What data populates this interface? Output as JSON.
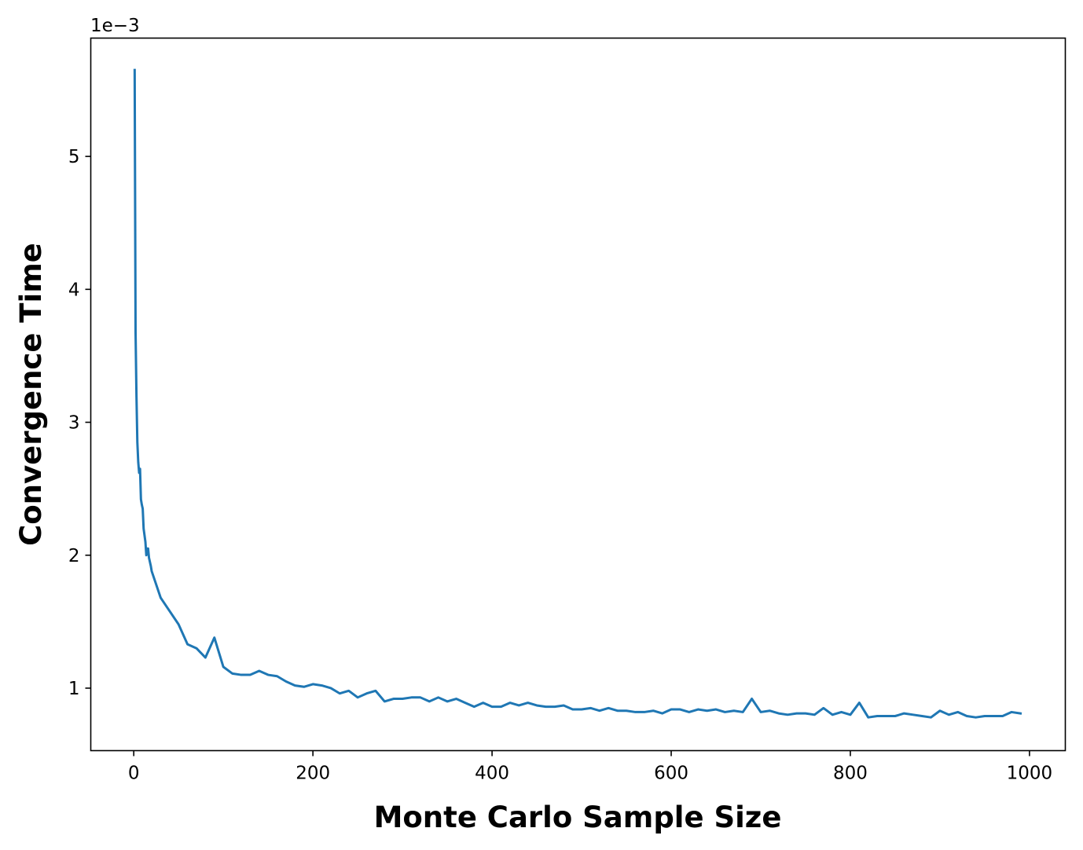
{
  "chart_data": {
    "type": "line",
    "title": "",
    "xlabel": "Monte Carlo Sample Size",
    "ylabel": "Convergence Time",
    "y_scale_offset": "1e−3",
    "xlim": [
      -48,
      1040
    ],
    "ylim": [
      0.53,
      5.89
    ],
    "x_ticks": [
      0,
      200,
      400,
      600,
      800,
      1000
    ],
    "y_ticks": [
      1,
      2,
      3,
      4,
      5
    ],
    "grid": false,
    "legend": "none",
    "color": "#1f77b4",
    "series": [
      {
        "x": [
          1,
          2,
          3,
          4,
          5,
          6,
          7,
          8,
          9,
          10,
          11,
          12,
          13,
          14,
          15,
          16,
          17,
          18,
          19,
          20,
          30,
          40,
          50,
          60,
          70,
          80,
          90,
          100,
          110,
          120,
          130,
          140,
          150,
          160,
          170,
          180,
          190,
          200,
          210,
          220,
          230,
          240,
          250,
          260,
          270,
          280,
          290,
          300,
          310,
          320,
          330,
          340,
          350,
          360,
          370,
          380,
          390,
          400,
          410,
          420,
          430,
          440,
          450,
          460,
          470,
          480,
          490,
          500,
          510,
          520,
          530,
          540,
          550,
          560,
          570,
          580,
          590,
          600,
          610,
          620,
          630,
          640,
          650,
          660,
          670,
          680,
          690,
          700,
          710,
          720,
          730,
          740,
          750,
          760,
          770,
          780,
          790,
          800,
          810,
          820,
          830,
          840,
          850,
          860,
          870,
          880,
          890,
          900,
          910,
          920,
          930,
          940,
          950,
          960,
          970,
          980,
          990
        ],
        "values": [
          5.65,
          3.68,
          3.2,
          2.85,
          2.7,
          2.62,
          2.65,
          2.42,
          2.38,
          2.35,
          2.2,
          2.15,
          2.1,
          2.0,
          2.05,
          2.05,
          1.98,
          1.95,
          1.92,
          1.88,
          1.68,
          1.58,
          1.48,
          1.33,
          1.3,
          1.23,
          1.38,
          1.16,
          1.11,
          1.1,
          1.1,
          1.13,
          1.1,
          1.09,
          1.05,
          1.02,
          1.01,
          1.03,
          1.02,
          1.0,
          0.96,
          0.98,
          0.93,
          0.96,
          0.98,
          0.9,
          0.92,
          0.92,
          0.93,
          0.93,
          0.9,
          0.93,
          0.9,
          0.92,
          0.89,
          0.86,
          0.89,
          0.86,
          0.86,
          0.89,
          0.87,
          0.89,
          0.87,
          0.86,
          0.86,
          0.87,
          0.84,
          0.84,
          0.85,
          0.83,
          0.85,
          0.83,
          0.83,
          0.82,
          0.82,
          0.83,
          0.81,
          0.84,
          0.84,
          0.82,
          0.84,
          0.83,
          0.84,
          0.82,
          0.83,
          0.82,
          0.92,
          0.82,
          0.83,
          0.81,
          0.8,
          0.81,
          0.81,
          0.8,
          0.85,
          0.8,
          0.82,
          0.8,
          0.89,
          0.78,
          0.79,
          0.79,
          0.79,
          0.81,
          0.8,
          0.79,
          0.78,
          0.83,
          0.8,
          0.82,
          0.79,
          0.78,
          0.79,
          0.79,
          0.79,
          0.82,
          0.81
        ]
      }
    ]
  }
}
